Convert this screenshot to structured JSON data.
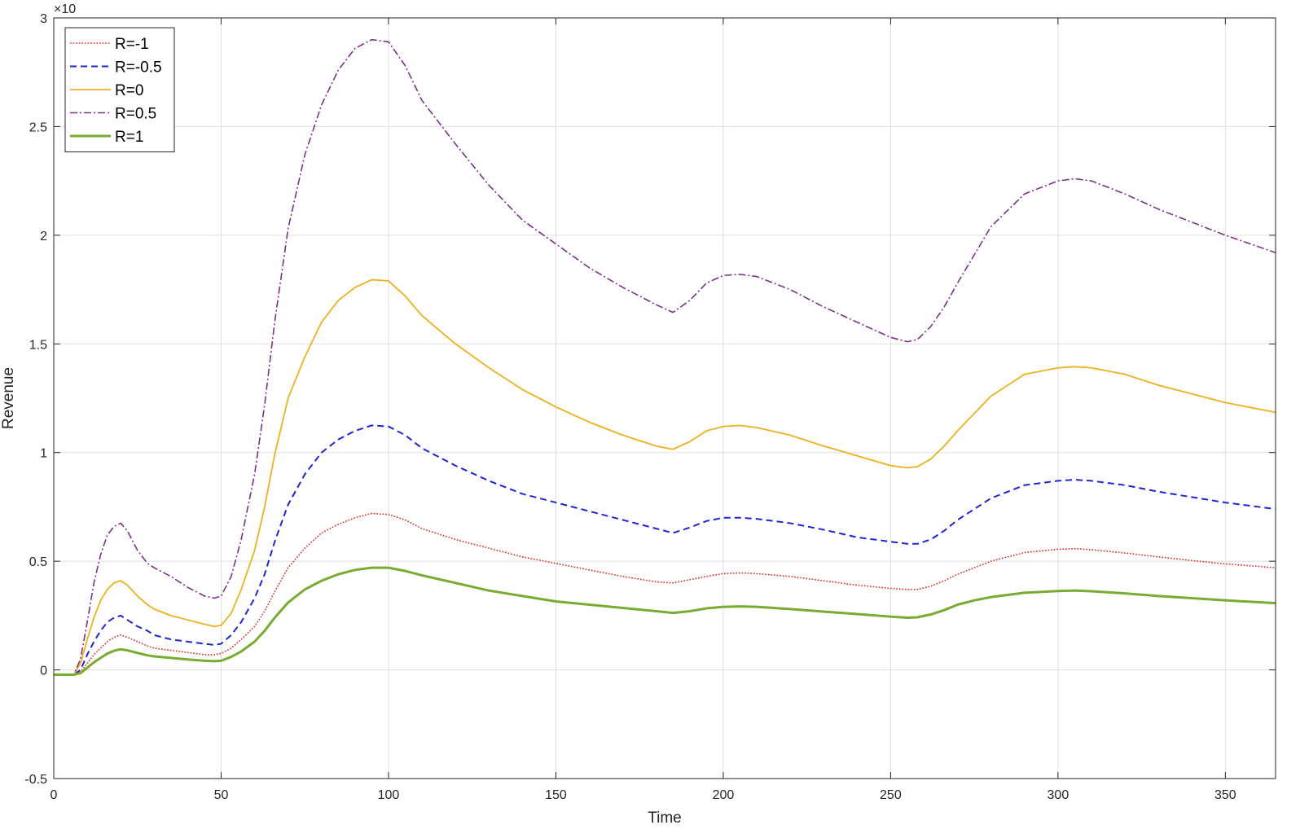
{
  "chart_data": {
    "type": "line",
    "title": "",
    "xlabel": "Time",
    "ylabel": "Revenue",
    "y_exponent_label": "×10",
    "xlim": [
      0,
      365
    ],
    "ylim": [
      -0.5,
      3
    ],
    "grid": true,
    "legend_position": "top-left",
    "x_ticks": [
      0,
      50,
      100,
      150,
      200,
      250,
      300,
      350
    ],
    "y_ticks": [
      -0.5,
      0,
      0.5,
      1,
      1.5,
      2,
      2.5,
      3
    ],
    "x_tick_labels": [
      "0",
      "50",
      "100",
      "150",
      "200",
      "250",
      "300",
      "350"
    ],
    "y_tick_labels": [
      "-0.5",
      "0",
      "0.5",
      "1",
      "1.5",
      "2",
      "2.5",
      "3"
    ],
    "x": [
      0,
      6,
      8,
      10,
      12,
      14,
      16,
      18,
      20,
      22,
      25,
      28,
      30,
      35,
      40,
      45,
      48,
      50,
      53,
      56,
      60,
      63,
      66,
      70,
      75,
      80,
      85,
      90,
      95,
      100,
      105,
      110,
      120,
      130,
      140,
      150,
      160,
      170,
      180,
      185,
      190,
      195,
      200,
      205,
      210,
      220,
      230,
      240,
      250,
      255,
      258,
      262,
      266,
      270,
      275,
      280,
      290,
      300,
      305,
      310,
      320,
      330,
      340,
      350,
      365
    ],
    "series": [
      {
        "name": "R=-1",
        "color": "#e3261b",
        "style": "dotted",
        "values": [
          -0.022,
          -0.022,
          -0.01,
          0.03,
          0.07,
          0.1,
          0.13,
          0.15,
          0.16,
          0.15,
          0.13,
          0.11,
          0.1,
          0.09,
          0.08,
          0.07,
          0.07,
          0.075,
          0.1,
          0.14,
          0.2,
          0.27,
          0.36,
          0.47,
          0.56,
          0.63,
          0.67,
          0.7,
          0.72,
          0.715,
          0.69,
          0.65,
          0.6,
          0.56,
          0.52,
          0.49,
          0.46,
          0.43,
          0.405,
          0.4,
          0.415,
          0.43,
          0.443,
          0.446,
          0.443,
          0.43,
          0.41,
          0.39,
          0.375,
          0.37,
          0.37,
          0.385,
          0.41,
          0.44,
          0.47,
          0.5,
          0.54,
          0.555,
          0.558,
          0.553,
          0.538,
          0.52,
          0.503,
          0.488,
          0.47
        ]
      },
      {
        "name": "R=-0.5",
        "color": "#1f24d6",
        "style": "dashed",
        "values": [
          -0.022,
          -0.022,
          0.0,
          0.07,
          0.13,
          0.18,
          0.22,
          0.24,
          0.25,
          0.23,
          0.2,
          0.18,
          0.16,
          0.14,
          0.13,
          0.12,
          0.115,
          0.12,
          0.16,
          0.22,
          0.33,
          0.44,
          0.59,
          0.76,
          0.9,
          1.0,
          1.06,
          1.1,
          1.125,
          1.12,
          1.08,
          1.02,
          0.94,
          0.87,
          0.81,
          0.77,
          0.73,
          0.69,
          0.65,
          0.63,
          0.655,
          0.685,
          0.7,
          0.7,
          0.695,
          0.675,
          0.645,
          0.61,
          0.59,
          0.58,
          0.58,
          0.6,
          0.64,
          0.69,
          0.74,
          0.79,
          0.85,
          0.87,
          0.875,
          0.87,
          0.85,
          0.82,
          0.795,
          0.77,
          0.74
        ]
      },
      {
        "name": "R=0",
        "color": "#edb120",
        "style": "solid",
        "values": [
          -0.022,
          -0.022,
          0.03,
          0.14,
          0.24,
          0.32,
          0.37,
          0.4,
          0.41,
          0.39,
          0.34,
          0.3,
          0.28,
          0.25,
          0.23,
          0.21,
          0.2,
          0.205,
          0.26,
          0.37,
          0.55,
          0.75,
          0.99,
          1.25,
          1.44,
          1.6,
          1.7,
          1.76,
          1.795,
          1.79,
          1.72,
          1.63,
          1.5,
          1.39,
          1.29,
          1.21,
          1.14,
          1.08,
          1.03,
          1.015,
          1.05,
          1.1,
          1.12,
          1.125,
          1.115,
          1.08,
          1.03,
          0.985,
          0.94,
          0.93,
          0.935,
          0.97,
          1.03,
          1.1,
          1.18,
          1.26,
          1.36,
          1.39,
          1.395,
          1.39,
          1.36,
          1.31,
          1.27,
          1.23,
          1.185
        ]
      },
      {
        "name": "R=0.5",
        "color": "#7e2f8e",
        "style": "dashdot",
        "values": [
          -0.022,
          -0.022,
          0.05,
          0.22,
          0.4,
          0.53,
          0.62,
          0.66,
          0.675,
          0.64,
          0.55,
          0.49,
          0.47,
          0.43,
          0.38,
          0.34,
          0.33,
          0.34,
          0.43,
          0.6,
          0.9,
          1.22,
          1.6,
          2.03,
          2.37,
          2.6,
          2.76,
          2.86,
          2.9,
          2.89,
          2.78,
          2.62,
          2.42,
          2.23,
          2.07,
          1.96,
          1.85,
          1.76,
          1.68,
          1.645,
          1.7,
          1.78,
          1.815,
          1.82,
          1.81,
          1.75,
          1.67,
          1.6,
          1.53,
          1.51,
          1.52,
          1.58,
          1.67,
          1.78,
          1.91,
          2.04,
          2.19,
          2.25,
          2.26,
          2.25,
          2.19,
          2.12,
          2.06,
          2.0,
          1.92
        ]
      },
      {
        "name": "R=1",
        "color": "#77ac30",
        "style": "solid-thick",
        "values": [
          -0.022,
          -0.022,
          -0.015,
          0.01,
          0.035,
          0.055,
          0.075,
          0.088,
          0.095,
          0.09,
          0.078,
          0.067,
          0.062,
          0.055,
          0.048,
          0.042,
          0.04,
          0.042,
          0.06,
          0.085,
          0.13,
          0.18,
          0.24,
          0.31,
          0.37,
          0.41,
          0.44,
          0.46,
          0.47,
          0.47,
          0.455,
          0.435,
          0.4,
          0.365,
          0.34,
          0.315,
          0.3,
          0.285,
          0.27,
          0.262,
          0.27,
          0.283,
          0.29,
          0.292,
          0.29,
          0.28,
          0.268,
          0.257,
          0.245,
          0.24,
          0.242,
          0.255,
          0.275,
          0.3,
          0.32,
          0.335,
          0.355,
          0.363,
          0.365,
          0.362,
          0.352,
          0.34,
          0.33,
          0.32,
          0.307
        ]
      }
    ]
  }
}
